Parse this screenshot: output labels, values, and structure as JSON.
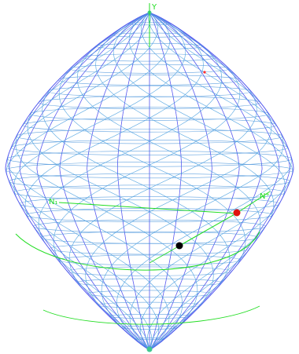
{
  "labels": {
    "axis_top": "Y",
    "axis_left": "N₁",
    "axis_right": "N⁺"
  },
  "colors": {
    "background": "#ffffff",
    "mesh_meridian": "#5a5af0",
    "mesh_latitude": "#3c8cd8",
    "mesh_helix": "#4aa0e0",
    "nodes": "#40c890",
    "axis_green": "#22dd22",
    "point_red": "#e01010",
    "point_black": "#000000",
    "marker_small_red": "#ff3030"
  },
  "mesh": {
    "meridians": 28,
    "latitudes": 30
  }
}
